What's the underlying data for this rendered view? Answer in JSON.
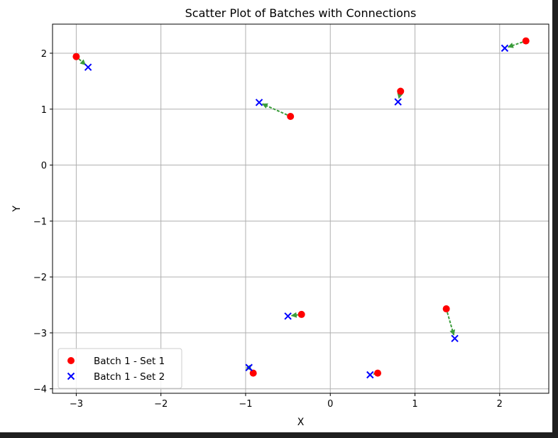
{
  "chart_data": {
    "type": "scatter",
    "title": "Scatter Plot of Batches with Connections",
    "xlabel": "X",
    "ylabel": "Y",
    "xlim": [
      -3.28,
      2.58
    ],
    "ylim": [
      -4.08,
      2.52
    ],
    "xticks": [
      -3,
      -2,
      -1,
      0,
      1,
      2
    ],
    "yticks": [
      -4,
      -3,
      -2,
      -1,
      0,
      1,
      2
    ],
    "xtick_labels": [
      "−3",
      "−2",
      "−1",
      "0",
      "1",
      "2"
    ],
    "ytick_labels": [
      "−4",
      "−3",
      "−2",
      "−1",
      "0",
      "1",
      "2"
    ],
    "grid": true,
    "legend_position": "lower-left",
    "series": [
      {
        "name": "Batch 1 - Set 1",
        "marker": "circle",
        "color": "#ff0000",
        "points": [
          {
            "x": -3.0,
            "y": 1.94
          },
          {
            "x": -0.47,
            "y": 0.87
          },
          {
            "x": 0.83,
            "y": 1.32
          },
          {
            "x": 2.31,
            "y": 2.22
          },
          {
            "x": -0.34,
            "y": -2.67
          },
          {
            "x": 1.37,
            "y": -2.57
          },
          {
            "x": -0.91,
            "y": -3.72
          },
          {
            "x": 0.56,
            "y": -3.72
          }
        ]
      },
      {
        "name": "Batch 1 - Set 2",
        "marker": "x",
        "color": "#0000ff",
        "points": [
          {
            "x": -2.86,
            "y": 1.75
          },
          {
            "x": -0.84,
            "y": 1.12
          },
          {
            "x": 0.8,
            "y": 1.13
          },
          {
            "x": 2.06,
            "y": 2.09
          },
          {
            "x": -0.5,
            "y": -2.7
          },
          {
            "x": 1.47,
            "y": -3.1
          },
          {
            "x": -0.96,
            "y": -3.62
          },
          {
            "x": 0.47,
            "y": -3.75
          }
        ]
      }
    ],
    "connections": {
      "color": "#3a9c3a",
      "style": "dashed-arrow",
      "pairs": [
        [
          0,
          0
        ],
        [
          1,
          1
        ],
        [
          2,
          2
        ],
        [
          3,
          3
        ],
        [
          4,
          4
        ],
        [
          5,
          5
        ],
        [
          6,
          6
        ],
        [
          7,
          7
        ]
      ]
    }
  }
}
